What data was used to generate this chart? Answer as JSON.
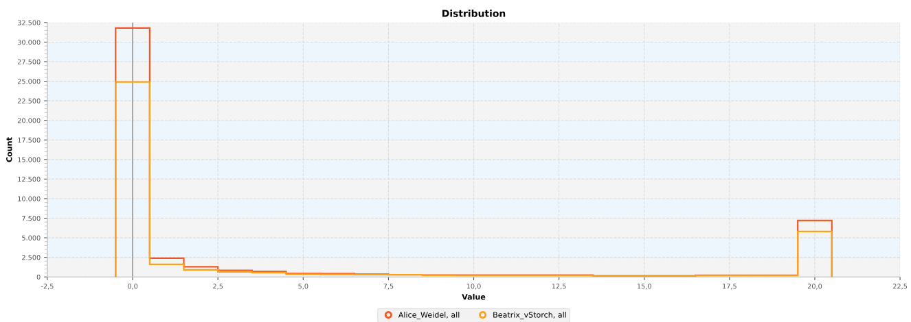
{
  "chart_data": {
    "type": "histogram",
    "title": "Distribution",
    "xlabel": "Value",
    "ylabel": "Count",
    "bins": [
      -0.5,
      0.5,
      1.5,
      2.5,
      3.5,
      4.5,
      5.5,
      6.5,
      7.5,
      8.5,
      9.5,
      10.5,
      11.5,
      12.5,
      13.5,
      14.5,
      15.5,
      16.5,
      17.5,
      18.5,
      19.5,
      20.5
    ],
    "series": [
      {
        "name": "Alice_Weidel, all",
        "color": "#f05a28",
        "values": [
          31800,
          2400,
          1300,
          850,
          700,
          450,
          420,
          350,
          280,
          220,
          220,
          220,
          220,
          220,
          150,
          150,
          150,
          200,
          200,
          200,
          7200
        ]
      },
      {
        "name": "Beatrix_vStorch, all",
        "color": "#faa21b",
        "values": [
          24900,
          1600,
          900,
          650,
          550,
          350,
          320,
          300,
          260,
          200,
          170,
          170,
          170,
          170,
          150,
          150,
          150,
          170,
          170,
          170,
          5800
        ]
      }
    ],
    "xlim": [
      -2.5,
      22.5
    ],
    "xticks": [
      {
        "value": -2.5,
        "label": "-2,5"
      },
      {
        "value": 0,
        "label": "0,0"
      },
      {
        "value": 2.5,
        "label": "2,5"
      },
      {
        "value": 5,
        "label": "5,0"
      },
      {
        "value": 7.5,
        "label": "7,5"
      },
      {
        "value": 10,
        "label": "10,0"
      },
      {
        "value": 12.5,
        "label": "12,5"
      },
      {
        "value": 15,
        "label": "15,0"
      },
      {
        "value": 17.5,
        "label": "17,5"
      },
      {
        "value": 20,
        "label": "20,0"
      },
      {
        "value": 22.5,
        "label": "22,5"
      }
    ],
    "ylim": [
      0,
      32500
    ],
    "yticks": [
      {
        "value": 0,
        "label": "0"
      },
      {
        "value": 2500,
        "label": "2.500"
      },
      {
        "value": 5000,
        "label": "5.000"
      },
      {
        "value": 7500,
        "label": "7.500"
      },
      {
        "value": 10000,
        "label": "10.000"
      },
      {
        "value": 12500,
        "label": "12.500"
      },
      {
        "value": 15000,
        "label": "15.000"
      },
      {
        "value": 17500,
        "label": "17.500"
      },
      {
        "value": 20000,
        "label": "20.000"
      },
      {
        "value": 22500,
        "label": "22.500"
      },
      {
        "value": 25000,
        "label": "25.000"
      },
      {
        "value": 27500,
        "label": "27.500"
      },
      {
        "value": 30000,
        "label": "30.000"
      },
      {
        "value": 32500,
        "label": "32.500"
      }
    ],
    "ref_lines": [
      {
        "axis": "x",
        "value": 0,
        "color": "#999999"
      }
    ],
    "grid": true,
    "legend": "bottom"
  }
}
